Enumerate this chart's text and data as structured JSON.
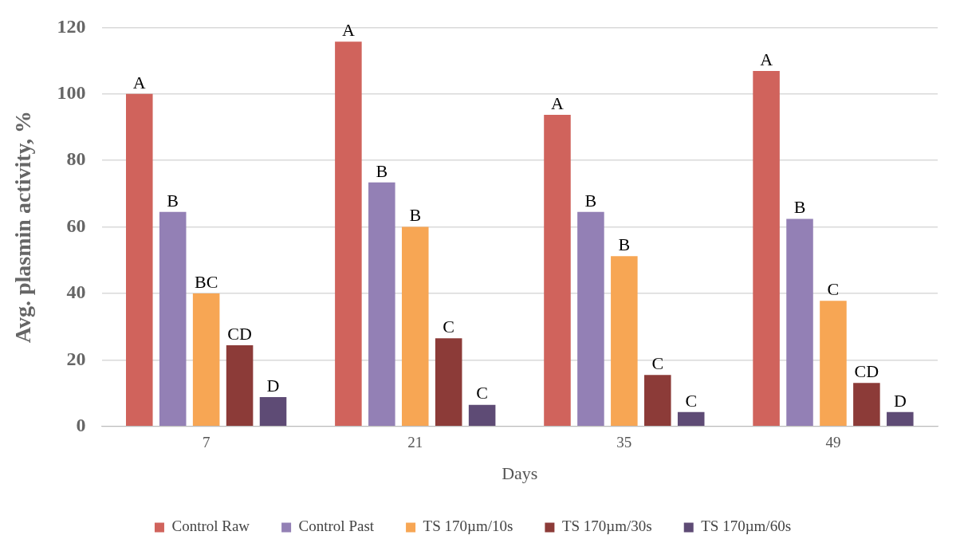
{
  "chart_data": {
    "type": "bar",
    "xlabel": "Days",
    "ylabel": "Avg. plasmin activity, %",
    "categories": [
      "7",
      "21",
      "35",
      "49"
    ],
    "series": [
      {
        "name": "Control Raw",
        "color": "#d0635c",
        "values": [
          100,
          115.7,
          93.7,
          106.9
        ],
        "value_labels": [
          "A",
          "A",
          "A",
          "A"
        ]
      },
      {
        "name": "Control Past",
        "color": "#9380b5",
        "values": [
          64.5,
          73.4,
          64.5,
          62.4
        ],
        "value_labels": [
          "B",
          "B",
          "B",
          "B"
        ]
      },
      {
        "name": "TS 170µm/10s",
        "color": "#f7a654",
        "values": [
          40,
          60,
          51.2,
          37.8
        ],
        "value_labels": [
          "BC",
          "B",
          "B",
          "C"
        ]
      },
      {
        "name": "TS 170µm/30s",
        "color": "#8c3b38",
        "values": [
          24.4,
          26.5,
          15.5,
          13.1
        ],
        "value_labels": [
          "CD",
          "C",
          "C",
          "CD"
        ]
      },
      {
        "name": "TS 170µm/60s",
        "color": "#5e4b75",
        "values": [
          8.8,
          6.5,
          4.3,
          4.3
        ],
        "value_labels": [
          "D",
          "C",
          "C",
          "D"
        ]
      }
    ],
    "ylim": [
      0,
      120
    ],
    "yticks": [
      0,
      20,
      40,
      60,
      80,
      100,
      120
    ],
    "grid": "y",
    "legend": "bottom"
  }
}
